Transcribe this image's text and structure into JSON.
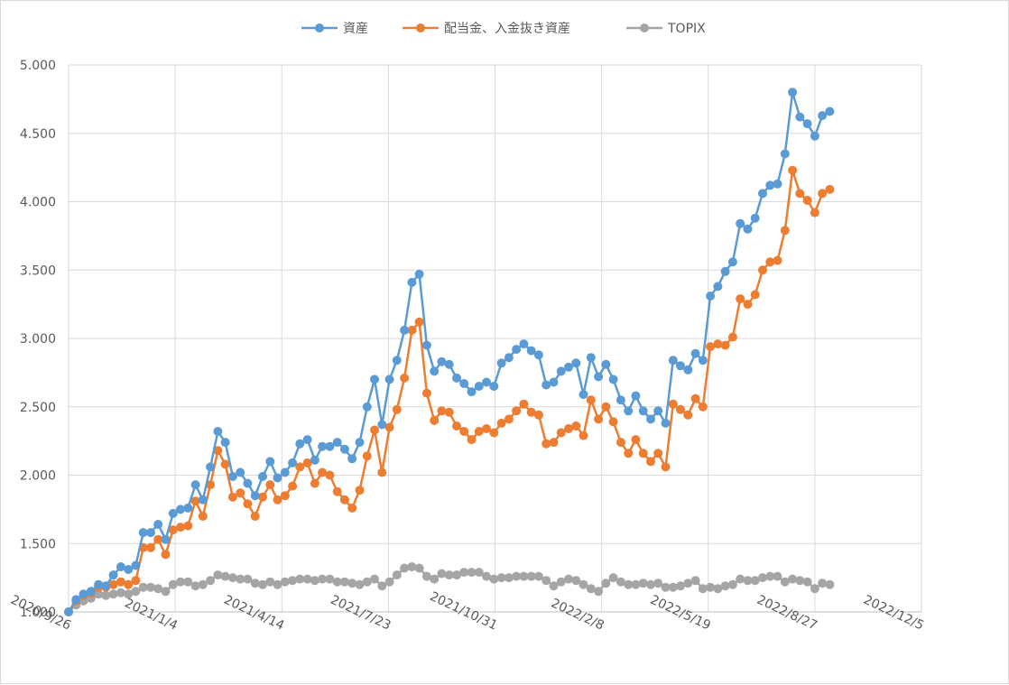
{
  "chart_data": {
    "type": "line",
    "title": "",
    "xlabel": "",
    "ylabel": "",
    "ylim": [
      1.0,
      5.0
    ],
    "yticks": [
      "1.000",
      "1.500",
      "2.000",
      "2.500",
      "3.000",
      "3.500",
      "4.000",
      "4.500",
      "5.000"
    ],
    "xticks": [
      "2020/9/26",
      "2021/1/4",
      "2021/4/14",
      "2021/7/23",
      "2021/10/31",
      "2022/2/8",
      "2022/5/19",
      "2022/8/27",
      "2022/12/5"
    ],
    "xlim": [
      "2020-09-26",
      "2022-12-05"
    ],
    "x_start": "2020-09-26",
    "x_step_days": 7,
    "grid": true,
    "legend_position": "top",
    "series": [
      {
        "name": "資産",
        "color": "#5b9bd5",
        "values": [
          1.0,
          1.09,
          1.13,
          1.15,
          1.2,
          1.19,
          1.27,
          1.33,
          1.31,
          1.34,
          1.58,
          1.58,
          1.64,
          1.53,
          1.72,
          1.75,
          1.76,
          1.93,
          1.82,
          2.06,
          2.32,
          2.24,
          1.99,
          2.02,
          1.94,
          1.85,
          1.99,
          2.1,
          1.98,
          2.02,
          2.09,
          2.23,
          2.26,
          2.11,
          2.21,
          2.21,
          2.24,
          2.19,
          2.12,
          2.24,
          2.5,
          2.7,
          2.37,
          2.7,
          2.84,
          3.06,
          3.41,
          3.47,
          2.95,
          2.76,
          2.83,
          2.81,
          2.71,
          2.67,
          2.61,
          2.65,
          2.68,
          2.65,
          2.82,
          2.86,
          2.92,
          2.96,
          2.91,
          2.88,
          2.66,
          2.68,
          2.76,
          2.79,
          2.82,
          2.59,
          2.86,
          2.72,
          2.81,
          2.7,
          2.55,
          2.47,
          2.58,
          2.47,
          2.41,
          2.47,
          2.38,
          2.84,
          2.8,
          2.77,
          2.89,
          2.84,
          3.31,
          3.38,
          3.49,
          3.56,
          3.84,
          3.8,
          3.88,
          4.06,
          4.12,
          4.13,
          4.35,
          4.8,
          4.62,
          4.57,
          4.48,
          4.63,
          4.66
        ]
      },
      {
        "name": "配当金、入金抜き資産",
        "color": "#ed7d31",
        "values": [
          1.0,
          1.08,
          1.12,
          1.14,
          1.18,
          1.18,
          1.2,
          1.22,
          1.2,
          1.23,
          1.47,
          1.47,
          1.53,
          1.42,
          1.6,
          1.62,
          1.63,
          1.81,
          1.7,
          1.93,
          2.18,
          2.08,
          1.84,
          1.87,
          1.79,
          1.7,
          1.84,
          1.93,
          1.82,
          1.85,
          1.92,
          2.06,
          2.09,
          1.94,
          2.02,
          2.0,
          1.88,
          1.82,
          1.76,
          1.89,
          2.14,
          2.33,
          2.02,
          2.35,
          2.48,
          2.71,
          3.06,
          3.12,
          2.6,
          2.4,
          2.47,
          2.46,
          2.36,
          2.32,
          2.26,
          2.32,
          2.34,
          2.31,
          2.38,
          2.41,
          2.47,
          2.52,
          2.46,
          2.44,
          2.23,
          2.24,
          2.31,
          2.34,
          2.36,
          2.29,
          2.55,
          2.41,
          2.5,
          2.39,
          2.24,
          2.16,
          2.26,
          2.16,
          2.1,
          2.16,
          2.06,
          2.52,
          2.48,
          2.44,
          2.56,
          2.5,
          2.94,
          2.96,
          2.95,
          3.01,
          3.29,
          3.25,
          3.32,
          3.5,
          3.56,
          3.57,
          3.79,
          4.23,
          4.06,
          4.01,
          3.92,
          4.06,
          4.09
        ]
      },
      {
        "name": "TOPIX",
        "color": "#a5a5a5",
        "values": [
          1.0,
          1.05,
          1.08,
          1.1,
          1.13,
          1.12,
          1.13,
          1.14,
          1.13,
          1.15,
          1.18,
          1.18,
          1.17,
          1.15,
          1.2,
          1.22,
          1.22,
          1.19,
          1.2,
          1.23,
          1.27,
          1.26,
          1.25,
          1.24,
          1.24,
          1.21,
          1.2,
          1.22,
          1.2,
          1.22,
          1.23,
          1.24,
          1.24,
          1.23,
          1.24,
          1.24,
          1.22,
          1.22,
          1.21,
          1.2,
          1.22,
          1.24,
          1.19,
          1.22,
          1.27,
          1.32,
          1.33,
          1.32,
          1.26,
          1.24,
          1.28,
          1.27,
          1.27,
          1.29,
          1.29,
          1.29,
          1.26,
          1.24,
          1.25,
          1.25,
          1.26,
          1.26,
          1.26,
          1.26,
          1.23,
          1.19,
          1.22,
          1.24,
          1.23,
          1.2,
          1.17,
          1.15,
          1.21,
          1.25,
          1.22,
          1.2,
          1.2,
          1.21,
          1.2,
          1.21,
          1.18,
          1.18,
          1.19,
          1.21,
          1.23,
          1.17,
          1.18,
          1.17,
          1.19,
          1.2,
          1.24,
          1.23,
          1.23,
          1.25,
          1.26,
          1.26,
          1.22,
          1.24,
          1.23,
          1.22,
          1.17,
          1.21,
          1.2
        ]
      }
    ]
  }
}
